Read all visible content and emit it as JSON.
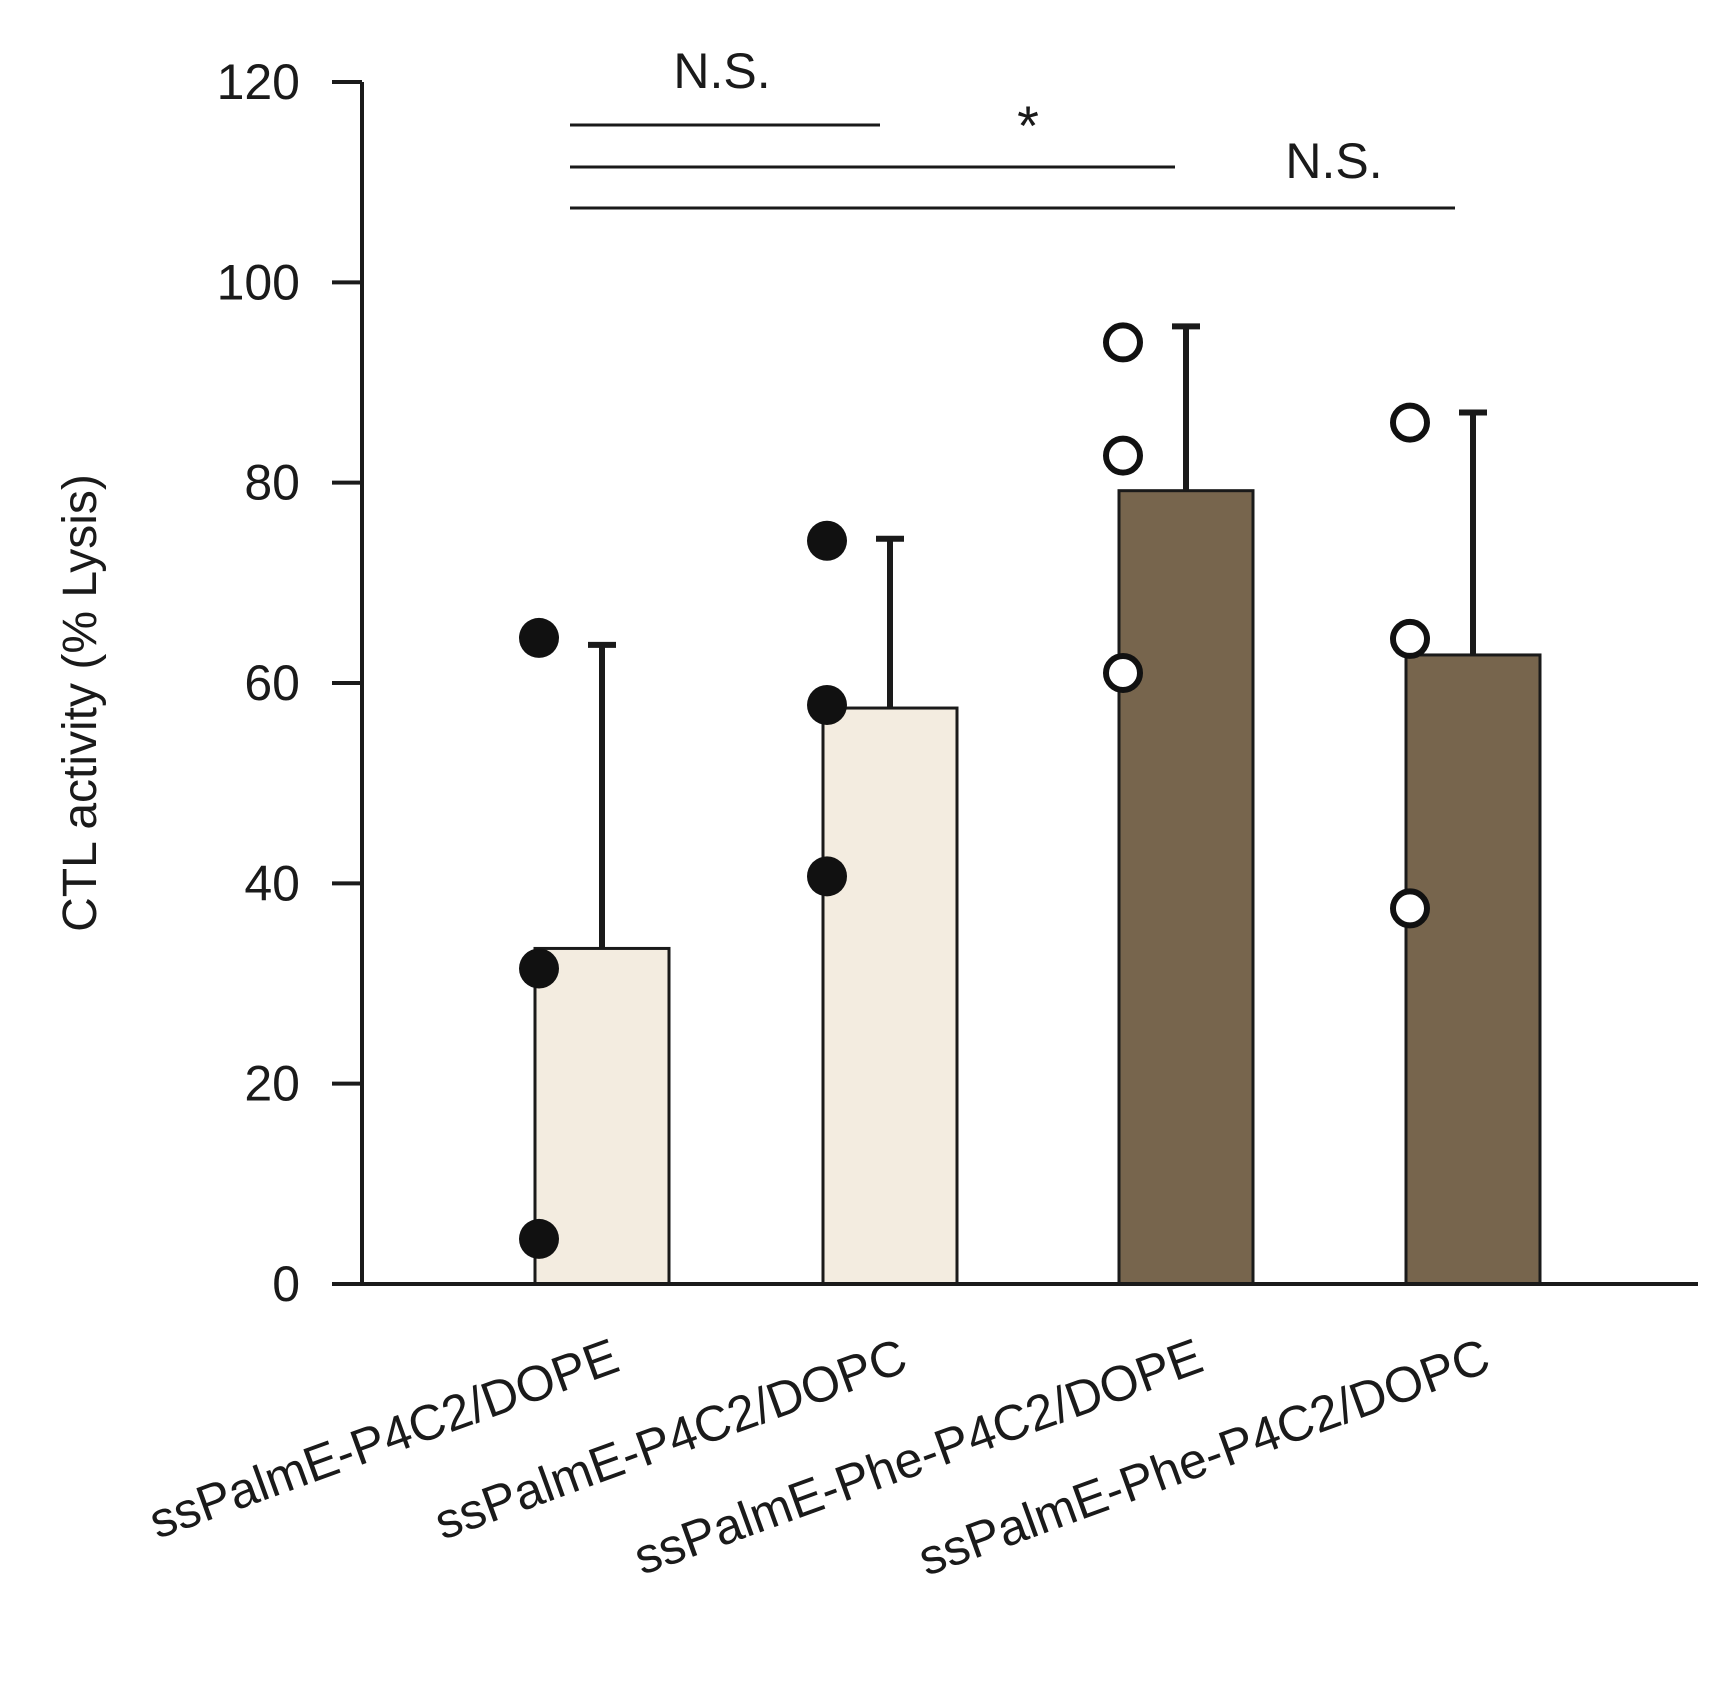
{
  "chart_data": {
    "type": "bar",
    "title": "",
    "xlabel": "",
    "ylabel": "CTL activity (% Lysis)",
    "ylim": [
      0,
      120
    ],
    "yticks": [
      0,
      20,
      40,
      60,
      80,
      100,
      120
    ],
    "categories": [
      "ssPalmE-P4C2/DOPE",
      "ssPalmE-P4C2/DOPC",
      "ssPalmE-Phe-P4C2/DOPE",
      "ssPalmE-Phe-P4C2/DOPC"
    ],
    "values": [
      33.5,
      57.5,
      79.2,
      62.8
    ],
    "error_upper": [
      63.8,
      74.4,
      95.6,
      87.0
    ],
    "bar_colors": [
      "#f3ece0",
      "#f3ece0",
      "#77654d",
      "#77654d"
    ],
    "points": [
      [
        64.5,
        31.5,
        4.5
      ],
      [
        74.2,
        57.8,
        40.7
      ],
      [
        94.0,
        82.7,
        61.0
      ],
      [
        86.0,
        64.4,
        37.5
      ]
    ],
    "point_styles": [
      "filled",
      "filled",
      "open",
      "open"
    ],
    "significance": [
      {
        "from": 0,
        "to": 1,
        "y": 116,
        "label": "N.S."
      },
      {
        "from": 0,
        "to": 2,
        "y": 112,
        "label": "*"
      },
      {
        "from": 0,
        "to": 3,
        "y": 108,
        "label": "N.S."
      }
    ]
  }
}
